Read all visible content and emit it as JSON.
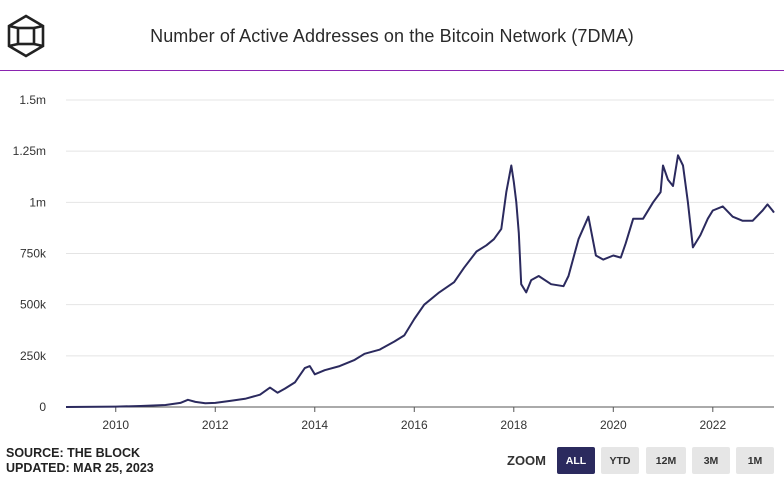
{
  "header": {
    "title": "Number of Active Addresses on the Bitcoin Network (7DMA)",
    "logo_icon": "block-cube-logo"
  },
  "footer": {
    "source": "SOURCE: THE BLOCK",
    "updated": "UPDATED: MAR 25, 2023"
  },
  "zoom": {
    "label": "ZOOM",
    "buttons": [
      {
        "label": "ALL",
        "active": true
      },
      {
        "label": "YTD",
        "active": false
      },
      {
        "label": "12M",
        "active": false
      },
      {
        "label": "3M",
        "active": false
      },
      {
        "label": "1M",
        "active": false
      }
    ]
  },
  "colors": {
    "line": "#2b2a5e",
    "accent_rule": "#8a24b0",
    "grid": "#e4e4e4",
    "zoom_active_bg": "#2b2a5e",
    "zoom_bg": "#e6e6e6"
  },
  "chart_data": {
    "type": "line",
    "title": "Number of Active Addresses on the Bitcoin Network (7DMA)",
    "xlim": [
      2009.0,
      2023.23
    ],
    "ylim": [
      0,
      1500000
    ],
    "x_ticks": [
      2010,
      2012,
      2014,
      2016,
      2018,
      2020,
      2022
    ],
    "x_tick_labels": [
      "2010",
      "2012",
      "2014",
      "2016",
      "2018",
      "2020",
      "2022"
    ],
    "y_ticks": [
      0,
      250000,
      500000,
      750000,
      1000000,
      1250000,
      1500000
    ],
    "y_tick_labels": [
      "0",
      "250k",
      "500k",
      "750k",
      "1m",
      "1.25m",
      "1.5m"
    ],
    "grid": "horizontal",
    "series": [
      {
        "x": [
          2009.0,
          2010.0,
          2010.5,
          2011.0,
          2011.3,
          2011.45,
          2011.6,
          2011.8,
          2012.0,
          2012.3,
          2012.6,
          2012.9,
          2013.1,
          2013.25,
          2013.4,
          2013.6,
          2013.8,
          2013.9,
          2014.0,
          2014.2,
          2014.5,
          2014.8,
          2015.0,
          2015.3,
          2015.6,
          2015.8,
          2016.0,
          2016.2,
          2016.5,
          2016.8,
          2017.0,
          2017.25,
          2017.45,
          2017.6,
          2017.75,
          2017.85,
          2017.95,
          2018.0,
          2018.05,
          2018.1,
          2018.15,
          2018.25,
          2018.35,
          2018.5,
          2018.75,
          2019.0,
          2019.1,
          2019.3,
          2019.5,
          2019.65,
          2019.8,
          2020.0,
          2020.15,
          2020.25,
          2020.4,
          2020.6,
          2020.8,
          2020.95,
          2021.0,
          2021.1,
          2021.2,
          2021.3,
          2021.4,
          2021.5,
          2021.6,
          2021.75,
          2021.9,
          2022.0,
          2022.2,
          2022.4,
          2022.6,
          2022.8,
          2023.0,
          2023.1,
          2023.2,
          2023.23
        ],
        "y": [
          0,
          2000,
          5000,
          10000,
          20000,
          35000,
          25000,
          18000,
          20000,
          30000,
          40000,
          60000,
          95000,
          70000,
          90000,
          120000,
          190000,
          200000,
          160000,
          180000,
          200000,
          230000,
          260000,
          280000,
          320000,
          350000,
          430000,
          500000,
          560000,
          610000,
          680000,
          760000,
          790000,
          820000,
          870000,
          1050000,
          1180000,
          1100000,
          1000000,
          850000,
          600000,
          560000,
          620000,
          640000,
          600000,
          590000,
          640000,
          820000,
          930000,
          740000,
          720000,
          740000,
          730000,
          800000,
          920000,
          920000,
          1000000,
          1050000,
          1180000,
          1110000,
          1080000,
          1230000,
          1180000,
          1000000,
          780000,
          840000,
          920000,
          960000,
          980000,
          930000,
          910000,
          910000,
          960000,
          990000,
          960000,
          950000
        ]
      }
    ]
  }
}
